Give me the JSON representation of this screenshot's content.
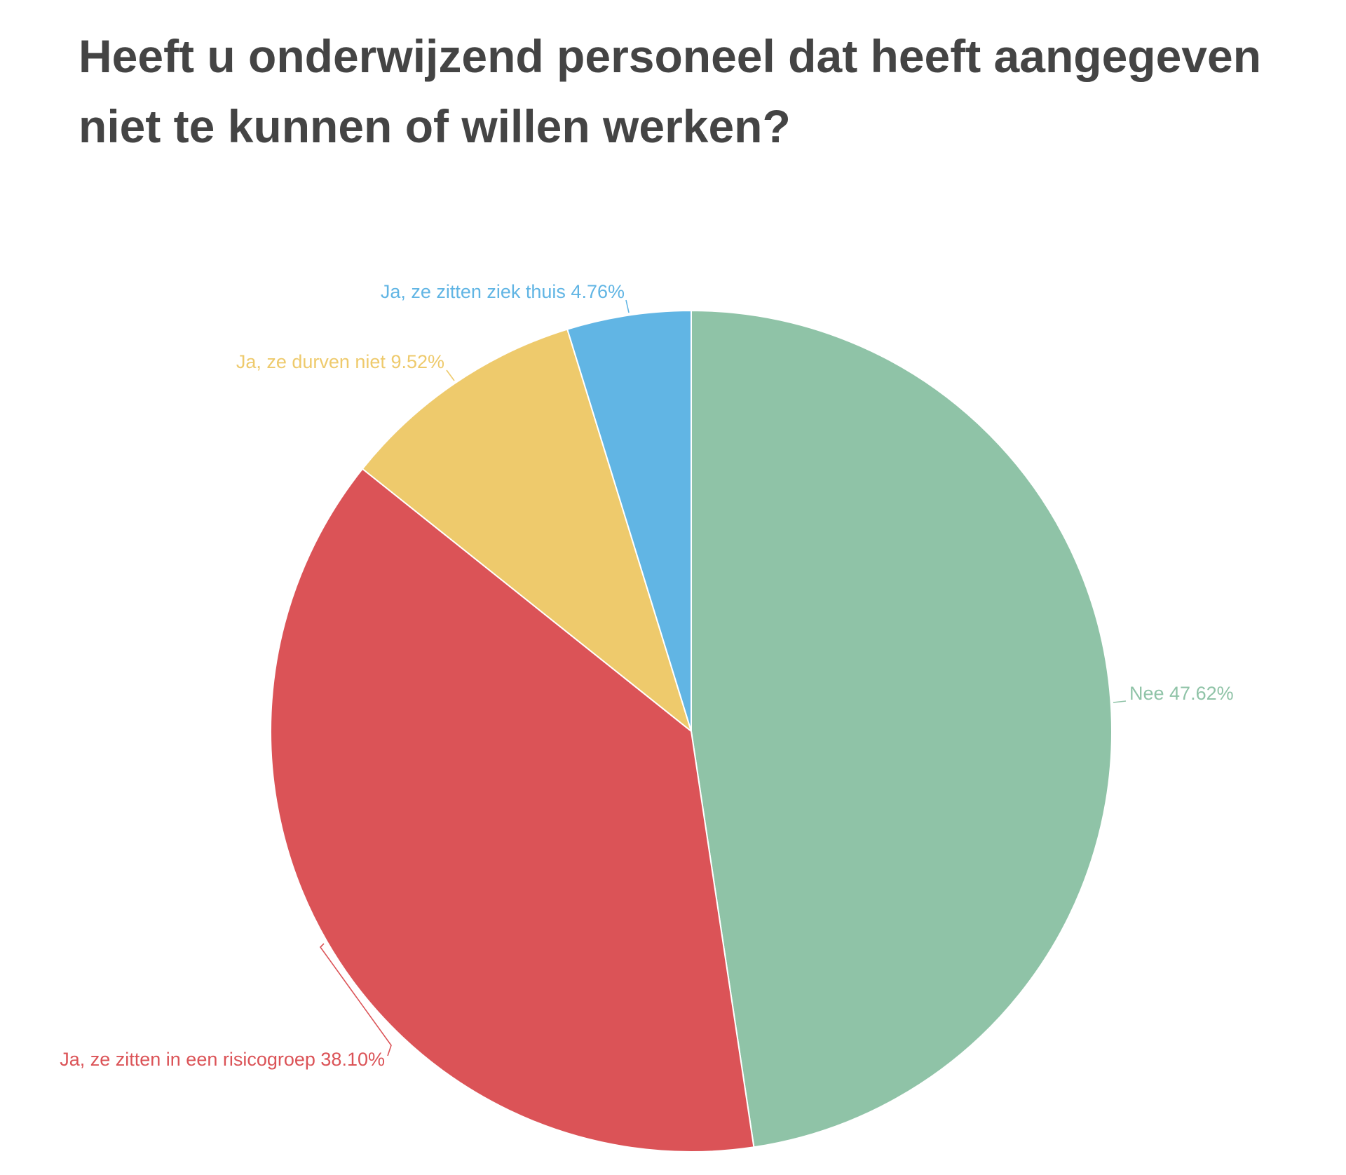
{
  "chart_data": {
    "type": "pie",
    "title": "Heeft u onderwijzend personeel dat heeft aangegeven niet te kunnen of willen werken?",
    "slices": [
      {
        "label": "Nee",
        "value": 47.62,
        "value_label": "47.62%",
        "color": "#8fc3a7"
      },
      {
        "label": "Ja, ze zitten in een risicogroep",
        "value": 38.1,
        "value_label": "38.10%",
        "color": "#db5357"
      },
      {
        "label": "Ja, ze durven niet",
        "value": 9.52,
        "value_label": "9.52%",
        "color": "#eeca6c"
      },
      {
        "label": "Ja, ze zitten ziek thuis",
        "value": 4.76,
        "value_label": "4.76%",
        "color": "#61b5e4"
      }
    ],
    "start": "12 o'clock",
    "direction": "clockwise",
    "legend": "none",
    "data_labels": "outside"
  }
}
